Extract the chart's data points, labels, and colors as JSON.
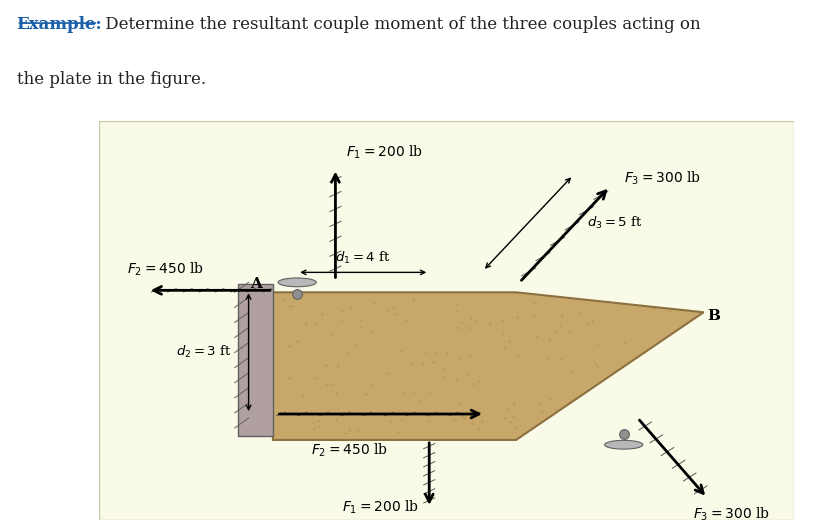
{
  "title_example": "Example:",
  "title_rest": " Determine the resultant couple moment of the three couples acting on",
  "title_line2": "the plate in the figure.",
  "bg_color": "#ffffff",
  "panel_bg": "#fafae8",
  "plate_color": "#c8a86a",
  "plate_edge": "#8b7040",
  "wall_color": "#b0a0a0",
  "wall_edge": "#606060",
  "F1_label": "$F_1 = 200$ lb",
  "F2_label": "$F_2 = 450$ lb",
  "F3_label": "$F_3 = 300$ lb",
  "d1_label": "$d_1 = 4$ ft",
  "d2_label": "$d_2 = 3$ ft",
  "d3_label": "$d_3 = 5$ ft",
  "A_label": "A",
  "B_label": "B",
  "example_color": "#1a5fa8",
  "text_color": "#222222"
}
